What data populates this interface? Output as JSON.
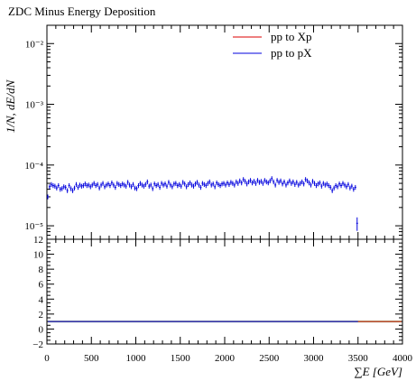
{
  "chart_data": {
    "type": "scatter",
    "title": "ZDC Minus Energy Deposition",
    "ylabel": "1/N, dE/dN",
    "xlabel": "∑E [GeV]",
    "xlim": [
      0,
      4000
    ],
    "xticks": [
      "0",
      "500",
      "1000",
      "1500",
      "2000",
      "2500",
      "3000",
      "3500",
      "4000"
    ],
    "main_panel": {
      "y_scale": "log",
      "ylim": [
        6e-06,
        0.02
      ],
      "yticks": [
        "10⁻⁵",
        "10⁻⁴",
        "10⁻³",
        "10⁻²"
      ],
      "legend_position": "top-right",
      "series": [
        {
          "name": "pp to Xp",
          "color": "#dd0000",
          "points": []
        },
        {
          "name": "pp to pX",
          "color": "#0000dd",
          "bin_width": 20,
          "points": [
            [
              10,
              3e-05
            ],
            [
              30,
              4.4e-05
            ],
            [
              50,
              4.8e-05
            ],
            [
              70,
              4.6e-05
            ],
            [
              90,
              4.5e-05
            ],
            [
              110,
              4.2e-05
            ],
            [
              130,
              4.6e-05
            ],
            [
              150,
              4e-05
            ],
            [
              170,
              4.1e-05
            ],
            [
              190,
              4.4e-05
            ],
            [
              210,
              4.3e-05
            ],
            [
              230,
              3.8e-05
            ],
            [
              250,
              4.6e-05
            ],
            [
              270,
              4.1e-05
            ],
            [
              290,
              3.8e-05
            ],
            [
              310,
              4.2e-05
            ],
            [
              330,
              4.8e-05
            ],
            [
              350,
              4.3e-05
            ],
            [
              370,
              4.7e-05
            ],
            [
              390,
              4.5e-05
            ],
            [
              410,
              4.6e-05
            ],
            [
              430,
              4.9e-05
            ],
            [
              450,
              4.6e-05
            ],
            [
              470,
              4.7e-05
            ],
            [
              490,
              4.4e-05
            ],
            [
              510,
              4.7e-05
            ],
            [
              530,
              5e-05
            ],
            [
              550,
              4.6e-05
            ],
            [
              570,
              4.8e-05
            ],
            [
              590,
              4.2e-05
            ],
            [
              610,
              4.7e-05
            ],
            [
              630,
              5e-05
            ],
            [
              650,
              4.4e-05
            ],
            [
              670,
              4.7e-05
            ],
            [
              690,
              4.9e-05
            ],
            [
              710,
              4.6e-05
            ],
            [
              730,
              5.1e-05
            ],
            [
              750,
              4.7e-05
            ],
            [
              770,
              4.3e-05
            ],
            [
              790,
              5e-05
            ],
            [
              810,
              4.8e-05
            ],
            [
              830,
              4.6e-05
            ],
            [
              850,
              4.9e-05
            ],
            [
              870,
              4.7e-05
            ],
            [
              890,
              4.5e-05
            ],
            [
              910,
              5.2e-05
            ],
            [
              930,
              4.7e-05
            ],
            [
              950,
              4.4e-05
            ],
            [
              970,
              4.8e-05
            ],
            [
              990,
              4.2e-05
            ],
            [
              1010,
              4.1e-05
            ],
            [
              1030,
              4.6e-05
            ],
            [
              1050,
              5e-05
            ],
            [
              1070,
              4.7e-05
            ],
            [
              1090,
              4.5e-05
            ],
            [
              1110,
              4.8e-05
            ],
            [
              1130,
              5.3e-05
            ],
            [
              1150,
              4.5e-05
            ],
            [
              1170,
              4.7e-05
            ],
            [
              1190,
              4.1e-05
            ],
            [
              1210,
              4.9e-05
            ],
            [
              1230,
              4.6e-05
            ],
            [
              1250,
              4.8e-05
            ],
            [
              1270,
              4.3e-05
            ],
            [
              1290,
              5e-05
            ],
            [
              1310,
              4.7e-05
            ],
            [
              1330,
              4.9e-05
            ],
            [
              1350,
              4.5e-05
            ],
            [
              1370,
              5.2e-05
            ],
            [
              1390,
              4.7e-05
            ],
            [
              1410,
              4.4e-05
            ],
            [
              1430,
              4.9e-05
            ],
            [
              1450,
              5e-05
            ],
            [
              1470,
              4.6e-05
            ],
            [
              1490,
              4.8e-05
            ],
            [
              1510,
              4.5e-05
            ],
            [
              1530,
              5.2e-05
            ],
            [
              1550,
              4.9e-05
            ],
            [
              1570,
              4.4e-05
            ],
            [
              1590,
              4.8e-05
            ],
            [
              1610,
              5.1e-05
            ],
            [
              1630,
              4.7e-05
            ],
            [
              1650,
              4.5e-05
            ],
            [
              1670,
              4.9e-05
            ],
            [
              1690,
              5.2e-05
            ],
            [
              1710,
              4.7e-05
            ],
            [
              1730,
              4.3e-05
            ],
            [
              1750,
              5e-05
            ],
            [
              1770,
              4.8e-05
            ],
            [
              1790,
              4.6e-05
            ],
            [
              1810,
              5e-05
            ],
            [
              1830,
              5.3e-05
            ],
            [
              1850,
              4.7e-05
            ],
            [
              1870,
              4.9e-05
            ],
            [
              1890,
              4.4e-05
            ],
            [
              1910,
              5.1e-05
            ],
            [
              1930,
              4.8e-05
            ],
            [
              1950,
              4.6e-05
            ],
            [
              1970,
              4.9e-05
            ],
            [
              1990,
              5e-05
            ],
            [
              2010,
              4.7e-05
            ],
            [
              2030,
              5.1e-05
            ],
            [
              2050,
              4.8e-05
            ],
            [
              2070,
              5.2e-05
            ],
            [
              2090,
              5e-05
            ],
            [
              2110,
              4.7e-05
            ],
            [
              2130,
              5.3e-05
            ],
            [
              2150,
              5e-05
            ],
            [
              2170,
              5.5e-05
            ],
            [
              2190,
              5.1e-05
            ],
            [
              2210,
              5.8e-05
            ],
            [
              2230,
              5.4e-05
            ],
            [
              2250,
              4.9e-05
            ],
            [
              2270,
              5.3e-05
            ],
            [
              2290,
              5.6e-05
            ],
            [
              2310,
              5.1e-05
            ],
            [
              2330,
              5.4e-05
            ],
            [
              2350,
              5e-05
            ],
            [
              2370,
              5.6e-05
            ],
            [
              2390,
              5.2e-05
            ],
            [
              2410,
              5.4e-05
            ],
            [
              2430,
              5e-05
            ],
            [
              2450,
              5.6e-05
            ],
            [
              2470,
              5.3e-05
            ],
            [
              2490,
              5.1e-05
            ],
            [
              2510,
              5.5e-05
            ],
            [
              2530,
              6e-05
            ],
            [
              2550,
              5.3e-05
            ],
            [
              2570,
              4.7e-05
            ],
            [
              2590,
              5.6e-05
            ],
            [
              2610,
              5.2e-05
            ],
            [
              2630,
              5.5e-05
            ],
            [
              2650,
              4.9e-05
            ],
            [
              2670,
              5.3e-05
            ],
            [
              2690,
              4.7e-05
            ],
            [
              2710,
              5.1e-05
            ],
            [
              2730,
              5.5e-05
            ],
            [
              2750,
              5e-05
            ],
            [
              2770,
              5.3e-05
            ],
            [
              2790,
              4.8e-05
            ],
            [
              2810,
              5.2e-05
            ],
            [
              2830,
              4.7e-05
            ],
            [
              2850,
              5e-05
            ],
            [
              2870,
              5.3e-05
            ],
            [
              2890,
              4.9e-05
            ],
            [
              2910,
              5.8e-05
            ],
            [
              2930,
              5.5e-05
            ],
            [
              2950,
              5.1e-05
            ],
            [
              2970,
              4.7e-05
            ],
            [
              2990,
              5.4e-05
            ],
            [
              3010,
              5e-05
            ],
            [
              3030,
              4.6e-05
            ],
            [
              3050,
              4.9e-05
            ],
            [
              3070,
              5.1e-05
            ],
            [
              3090,
              4.5e-05
            ],
            [
              3110,
              5e-05
            ],
            [
              3130,
              4.7e-05
            ],
            [
              3150,
              4.9e-05
            ],
            [
              3170,
              4.6e-05
            ],
            [
              3190,
              4.3e-05
            ],
            [
              3210,
              3.8e-05
            ],
            [
              3230,
              4.2e-05
            ],
            [
              3250,
              4.6e-05
            ],
            [
              3270,
              4.4e-05
            ],
            [
              3290,
              4.9e-05
            ],
            [
              3310,
              4.6e-05
            ],
            [
              3330,
              5e-05
            ],
            [
              3350,
              4.7e-05
            ],
            [
              3370,
              4.4e-05
            ],
            [
              3390,
              4.8e-05
            ],
            [
              3410,
              4.2e-05
            ],
            [
              3430,
              4.5e-05
            ],
            [
              3450,
              4e-05
            ],
            [
              3470,
              4.3e-05
            ],
            [
              3490,
              1.1e-05
            ]
          ]
        }
      ]
    },
    "ratio_panel": {
      "ylim": [
        -2,
        12
      ],
      "yticks": [
        "−2",
        "0",
        "2",
        "4",
        "6",
        "8",
        "10",
        "12"
      ],
      "reference_value": 1
    }
  }
}
